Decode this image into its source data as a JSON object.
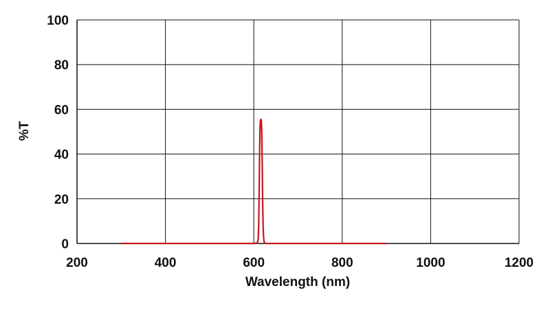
{
  "chart_data": {
    "type": "line",
    "xlabel": "Wavelength (nm)",
    "ylabel": "%T",
    "xlim": [
      200,
      1200
    ],
    "ylim": [
      0,
      100
    ],
    "xticks": [
      200,
      400,
      600,
      800,
      1000,
      1200
    ],
    "yticks": [
      0,
      20,
      40,
      60,
      80,
      100
    ],
    "grid": true,
    "legend": "none",
    "series": [
      {
        "color": "#c8141e",
        "x": [
          300,
          600,
          608,
          610,
          611,
          612,
          613,
          614,
          615,
          616,
          617,
          618,
          619,
          620,
          621,
          622,
          623,
          624,
          625,
          626,
          628,
          632,
          900
        ],
        "y": [
          0,
          0,
          0.3,
          2,
          8,
          22,
          40,
          52,
          55,
          55.5,
          55,
          50,
          35,
          18,
          8,
          3,
          1,
          0.5,
          0.2,
          0,
          0,
          0,
          0
        ]
      }
    ]
  }
}
